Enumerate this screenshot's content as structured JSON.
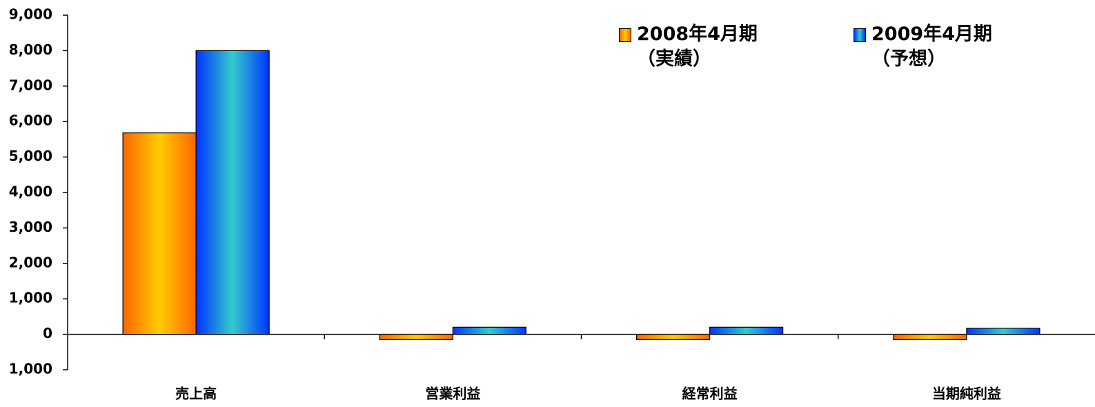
{
  "chart_data": {
    "type": "bar",
    "categories": [
      "売上高",
      "営業利益",
      "経常利益",
      "当期純利益"
    ],
    "series": [
      {
        "name": "2008年4月期\n（実績）",
        "color": "#ff6600",
        "highlight": "#ffcc00",
        "values": [
          5680,
          -150,
          -150,
          -150
        ]
      },
      {
        "name": "2009年4月期\n（予想）",
        "color": "#0033ff",
        "highlight": "#33cccc",
        "values": [
          8000,
          200,
          200,
          170
        ]
      }
    ],
    "ylim": [
      -1000,
      9000
    ],
    "yticks": [
      {
        "value": -1000,
        "label": "1,000"
      },
      0,
      {
        "value": 1000,
        "label": "1,000"
      },
      {
        "value": 2000,
        "label": "2,000"
      },
      {
        "value": 3000,
        "label": "3,000"
      },
      {
        "value": 4000,
        "label": "4,000"
      },
      {
        "value": 5000,
        "label": "5,000"
      },
      {
        "value": 6000,
        "label": "6,000"
      },
      {
        "value": 7000,
        "label": "7,000"
      },
      {
        "value": 8000,
        "label": "8,000"
      },
      {
        "value": 9000,
        "label": "9,000"
      }
    ],
    "legend": "top-right"
  }
}
